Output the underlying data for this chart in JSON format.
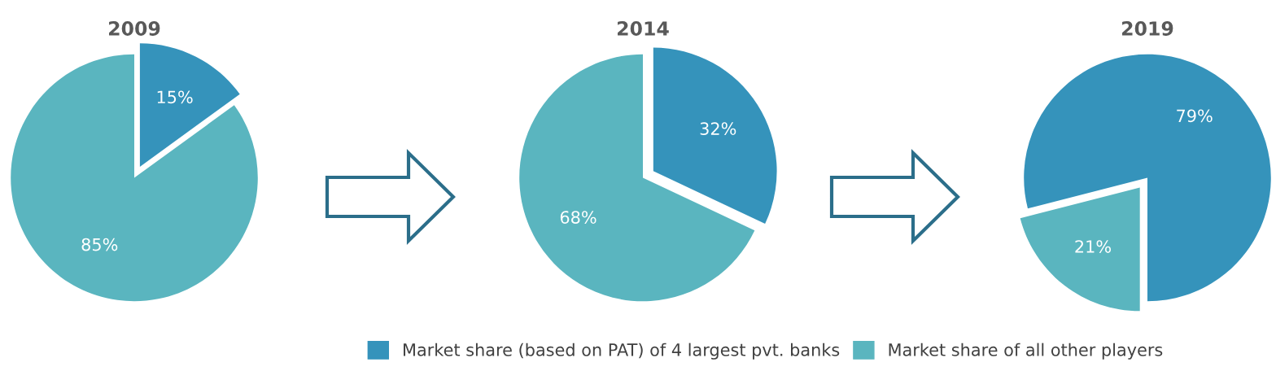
{
  "chart_data": [
    {
      "type": "pie",
      "title": "2009",
      "categories": [
        "Market share (based on PAT) of 4 largest pvt. banks",
        "Market share of all other players"
      ],
      "values": [
        15,
        85
      ],
      "value_labels": [
        "15%",
        "85%"
      ],
      "colors": [
        "#3593bb",
        "#5ab5bf"
      ],
      "legend": "bottom"
    },
    {
      "type": "pie",
      "title": "2014",
      "categories": [
        null,
        null
      ],
      "values": [
        32,
        68
      ],
      "value_labels": [
        "32%",
        "68%"
      ],
      "colors": [
        "#3593bb",
        "#5ab5bf"
      ]
    },
    {
      "type": "pie",
      "title": "2019",
      "categories": [
        null,
        null
      ],
      "values": [
        79,
        21
      ],
      "value_labels": [
        "79%",
        "21%"
      ],
      "colors": [
        "#3593bb",
        "#5ab5bf"
      ]
    }
  ]
}
